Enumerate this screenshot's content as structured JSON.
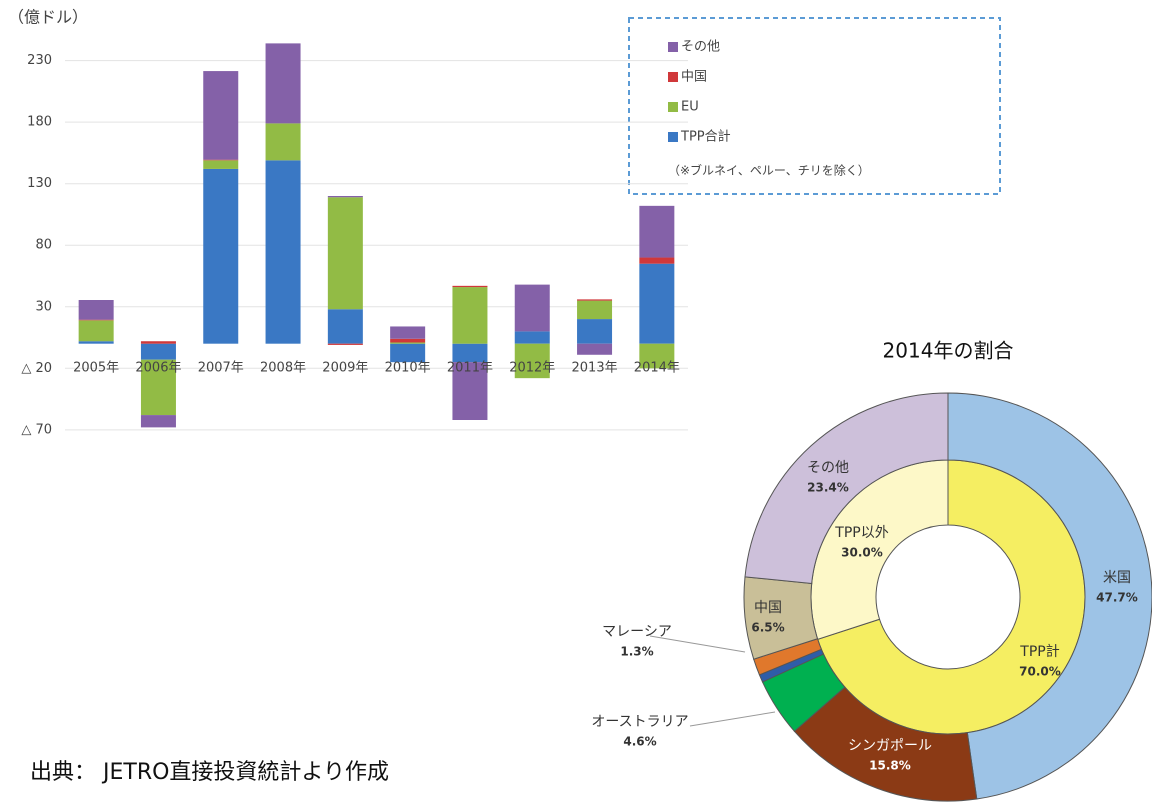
{
  "chart_data": [
    {
      "type": "bar",
      "stacked": true,
      "ylabel": "（億ドル）",
      "note": "（※ブルネイ、ペルー、チリを除く）",
      "categories": [
        "2005年",
        "2006年",
        "2007年",
        "2008年",
        "2009年",
        "2010年",
        "2011年",
        "2012年",
        "2013年",
        "2014年"
      ],
      "series": [
        {
          "name": "TPP合計",
          "color": "#3a78c4",
          "values": [
            2,
            -13,
            142,
            149,
            28,
            -15,
            -15,
            10,
            20,
            65
          ]
        },
        {
          "name": "EU",
          "color": "#92bb45",
          "values": [
            17,
            -45,
            7,
            30,
            91,
            1,
            46,
            -28,
            15,
            -20
          ]
        },
        {
          "name": "中国",
          "color": "#d0383a",
          "values": [
            0.5,
            2,
            0.5,
            0,
            -1,
            3,
            1,
            0,
            1,
            5
          ]
        },
        {
          "name": "その他",
          "color": "#8461a8",
          "values": [
            16,
            -10,
            72,
            65,
            1,
            10,
            -47,
            38,
            -9,
            42
          ]
        }
      ],
      "ylim": [
        -75,
        250
      ],
      "yticks": [
        {
          "value": -70,
          "label": "△ 70"
        },
        {
          "value": -20,
          "label": "△ 20"
        },
        30,
        80,
        130,
        180,
        230
      ],
      "grid": true
    },
    {
      "type": "donut",
      "title": "2014年の割合",
      "rings": [
        {
          "categories": [
            "TPP計",
            "TPP以外"
          ],
          "values": [
            70.0,
            30.0
          ],
          "value_labels": [
            "70.0%",
            "30.0%"
          ],
          "colors": [
            "#f5ee62",
            "#fdf8c8"
          ]
        },
        {
          "categories": [
            "米国",
            "シンガポール",
            "オーストラリア",
            null,
            "マレーシア",
            "中国",
            "その他"
          ],
          "values": [
            47.7,
            15.8,
            4.6,
            0.6,
            1.3,
            6.5,
            23.4
          ],
          "value_labels": [
            "47.7%",
            "15.8%",
            "4.6%",
            null,
            "1.3%",
            "6.5%",
            "23.4%"
          ],
          "colors": [
            "#9dc3e6",
            "#8b3a15",
            "#00b050",
            "#2f5da8",
            "#e0782c",
            "#c9bf98",
            "#cdc0da"
          ]
        }
      ]
    },
    {
      "type": "text",
      "source": "出典： JETRO直接投資統計より作成"
    }
  ]
}
